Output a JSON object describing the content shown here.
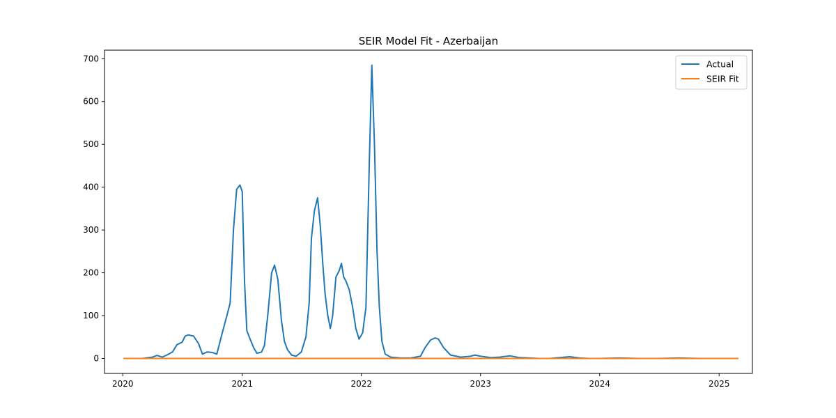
{
  "chart_data": {
    "type": "line",
    "title": "SEIR Model Fit - Azerbaijan",
    "xlabel": "",
    "ylabel": "",
    "x_axis": "date",
    "xlim": [
      "2019-11-06",
      "2025-04-13"
    ],
    "ylim": [
      -35,
      720
    ],
    "x_ticks": [
      {
        "date": "2020-01-01",
        "label": "2020"
      },
      {
        "date": "2021-01-01",
        "label": "2021"
      },
      {
        "date": "2022-01-01",
        "label": "2022"
      },
      {
        "date": "2023-01-01",
        "label": "2023"
      },
      {
        "date": "2024-01-01",
        "label": "2024"
      },
      {
        "date": "2025-01-01",
        "label": "2025"
      }
    ],
    "y_ticks": [
      0,
      100,
      200,
      300,
      400,
      500,
      600,
      700
    ],
    "grid": false,
    "legend_position": "top-right",
    "series": [
      {
        "name": "Actual",
        "color": "#1f77b4",
        "points": [
          [
            "2020-01-03",
            0
          ],
          [
            "2020-03-01",
            0
          ],
          [
            "2020-04-01",
            3
          ],
          [
            "2020-04-15",
            7
          ],
          [
            "2020-05-01",
            3
          ],
          [
            "2020-05-15",
            8
          ],
          [
            "2020-06-01",
            15
          ],
          [
            "2020-06-15",
            32
          ],
          [
            "2020-07-01",
            38
          ],
          [
            "2020-07-10",
            52
          ],
          [
            "2020-07-20",
            55
          ],
          [
            "2020-08-05",
            52
          ],
          [
            "2020-08-20",
            35
          ],
          [
            "2020-09-01",
            10
          ],
          [
            "2020-09-15",
            15
          ],
          [
            "2020-10-01",
            14
          ],
          [
            "2020-10-15",
            10
          ],
          [
            "2020-11-01",
            60
          ],
          [
            "2020-11-15",
            100
          ],
          [
            "2020-11-25",
            130
          ],
          [
            "2020-12-05",
            300
          ],
          [
            "2020-12-15",
            395
          ],
          [
            "2020-12-25",
            405
          ],
          [
            "2021-01-01",
            390
          ],
          [
            "2021-01-08",
            180
          ],
          [
            "2021-01-15",
            65
          ],
          [
            "2021-01-25",
            45
          ],
          [
            "2021-02-05",
            25
          ],
          [
            "2021-02-15",
            12
          ],
          [
            "2021-03-01",
            15
          ],
          [
            "2021-03-10",
            30
          ],
          [
            "2021-03-20",
            100
          ],
          [
            "2021-04-01",
            200
          ],
          [
            "2021-04-10",
            218
          ],
          [
            "2021-04-20",
            185
          ],
          [
            "2021-05-01",
            90
          ],
          [
            "2021-05-10",
            40
          ],
          [
            "2021-05-20",
            20
          ],
          [
            "2021-06-01",
            8
          ],
          [
            "2021-06-15",
            5
          ],
          [
            "2021-07-01",
            15
          ],
          [
            "2021-07-15",
            50
          ],
          [
            "2021-07-25",
            130
          ],
          [
            "2021-08-01",
            280
          ],
          [
            "2021-08-10",
            345
          ],
          [
            "2021-08-20",
            375
          ],
          [
            "2021-08-28",
            310
          ],
          [
            "2021-09-05",
            220
          ],
          [
            "2021-09-12",
            150
          ],
          [
            "2021-09-20",
            100
          ],
          [
            "2021-09-28",
            70
          ],
          [
            "2021-10-05",
            100
          ],
          [
            "2021-10-15",
            190
          ],
          [
            "2021-10-25",
            205
          ],
          [
            "2021-11-01",
            222
          ],
          [
            "2021-11-08",
            190
          ],
          [
            "2021-11-15",
            180
          ],
          [
            "2021-11-25",
            160
          ],
          [
            "2021-12-05",
            120
          ],
          [
            "2021-12-15",
            70
          ],
          [
            "2021-12-25",
            45
          ],
          [
            "2022-01-05",
            60
          ],
          [
            "2022-01-15",
            120
          ],
          [
            "2022-01-25",
            450
          ],
          [
            "2022-02-02",
            685
          ],
          [
            "2022-02-10",
            500
          ],
          [
            "2022-02-18",
            250
          ],
          [
            "2022-02-25",
            120
          ],
          [
            "2022-03-05",
            40
          ],
          [
            "2022-03-15",
            10
          ],
          [
            "2022-04-01",
            3
          ],
          [
            "2022-05-01",
            1
          ],
          [
            "2022-06-01",
            1
          ],
          [
            "2022-07-01",
            5
          ],
          [
            "2022-07-15",
            25
          ],
          [
            "2022-08-01",
            43
          ],
          [
            "2022-08-15",
            48
          ],
          [
            "2022-08-25",
            45
          ],
          [
            "2022-09-10",
            25
          ],
          [
            "2022-10-01",
            8
          ],
          [
            "2022-11-01",
            3
          ],
          [
            "2022-12-01",
            5
          ],
          [
            "2022-12-15",
            8
          ],
          [
            "2023-01-01",
            5
          ],
          [
            "2023-02-01",
            2
          ],
          [
            "2023-03-01",
            3
          ],
          [
            "2023-04-01",
            6
          ],
          [
            "2023-05-01",
            2
          ],
          [
            "2023-06-01",
            1
          ],
          [
            "2023-07-01",
            0
          ],
          [
            "2023-08-01",
            0
          ],
          [
            "2023-09-01",
            2
          ],
          [
            "2023-10-01",
            4
          ],
          [
            "2023-11-01",
            1
          ],
          [
            "2023-12-01",
            0
          ],
          [
            "2024-01-01",
            0
          ],
          [
            "2024-03-01",
            1
          ],
          [
            "2024-05-01",
            0
          ],
          [
            "2024-07-01",
            0
          ],
          [
            "2024-09-01",
            1
          ],
          [
            "2024-11-01",
            0
          ],
          [
            "2024-12-31",
            0
          ]
        ]
      },
      {
        "name": "SEIR Fit",
        "color": "#ff7f0e",
        "points": [
          [
            "2020-01-03",
            0
          ],
          [
            "2025-03-01",
            0
          ]
        ]
      }
    ]
  }
}
